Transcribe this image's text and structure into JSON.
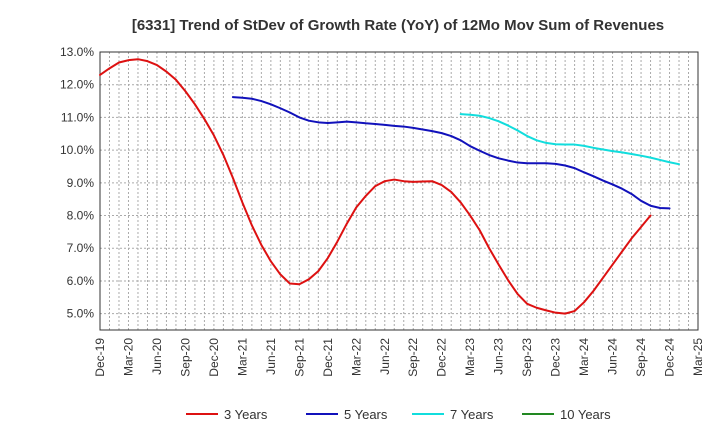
{
  "chart_data": {
    "type": "line",
    "title": "[6331]  Trend of StDev of Growth Rate (YoY) of 12Mo Mov Sum of Revenues",
    "xlabel": "",
    "ylabel": "",
    "ylim": [
      4.5,
      13.0
    ],
    "yticks": [
      5.0,
      6.0,
      7.0,
      8.0,
      9.0,
      10.0,
      11.0,
      12.0,
      13.0
    ],
    "ytick_labels": [
      "5.0%",
      "6.0%",
      "7.0%",
      "8.0%",
      "9.0%",
      "10.0%",
      "11.0%",
      "12.0%",
      "13.0%"
    ],
    "x_categories": [
      "Dec-19",
      "Mar-20",
      "Jun-20",
      "Sep-20",
      "Dec-20",
      "Mar-21",
      "Jun-21",
      "Sep-21",
      "Dec-21",
      "Mar-22",
      "Jun-22",
      "Sep-22",
      "Dec-22",
      "Mar-23",
      "Jun-23",
      "Sep-23",
      "Dec-23",
      "Mar-24",
      "Jun-24",
      "Sep-24",
      "Dec-24",
      "Mar-25"
    ],
    "grid": true,
    "legend_position": "bottom",
    "series": [
      {
        "name": "3 Years",
        "color": "#dd1111",
        "start_index": 0,
        "values": [
          12.3,
          12.5,
          12.68,
          12.75,
          12.78,
          12.72,
          12.6,
          12.4,
          12.15,
          11.8,
          11.4,
          10.95,
          10.45,
          9.85,
          9.15,
          8.4,
          7.7,
          7.1,
          6.6,
          6.2,
          5.92,
          5.9,
          6.05,
          6.3,
          6.7,
          7.2,
          7.75,
          8.25,
          8.6,
          8.9,
          9.05,
          9.1,
          9.05,
          9.03,
          9.04,
          9.05,
          8.93,
          8.72,
          8.4,
          8.0,
          7.55,
          7.0,
          6.5,
          6.02,
          5.6,
          5.3,
          5.18,
          5.1,
          5.03,
          5.0,
          5.08,
          5.35,
          5.7,
          6.1,
          6.5,
          6.9,
          7.3,
          7.65,
          8.0
        ]
      },
      {
        "name": "5 Years",
        "color": "#1111bb",
        "start_index": 14,
        "values": [
          11.62,
          11.6,
          11.57,
          11.5,
          11.4,
          11.28,
          11.15,
          11.0,
          10.9,
          10.85,
          10.83,
          10.85,
          10.87,
          10.85,
          10.82,
          10.8,
          10.77,
          10.74,
          10.72,
          10.68,
          10.63,
          10.58,
          10.52,
          10.43,
          10.3,
          10.12,
          9.98,
          9.85,
          9.75,
          9.68,
          9.62,
          9.6,
          9.6,
          9.6,
          9.58,
          9.53,
          9.45,
          9.32,
          9.2,
          9.07,
          8.95,
          8.82,
          8.66,
          8.45,
          8.3,
          8.23,
          8.22
        ]
      },
      {
        "name": "7 Years",
        "color": "#11dddd",
        "start_index": 38,
        "values": [
          11.1,
          11.08,
          11.05,
          10.98,
          10.88,
          10.75,
          10.6,
          10.43,
          10.3,
          10.22,
          10.18,
          10.17,
          10.17,
          10.13,
          10.07,
          10.02,
          9.97,
          9.93,
          9.88,
          9.83,
          9.77,
          9.7,
          9.63,
          9.57
        ]
      },
      {
        "name": "10 Years",
        "color": "#228822",
        "start_index": 0,
        "values": []
      }
    ]
  }
}
